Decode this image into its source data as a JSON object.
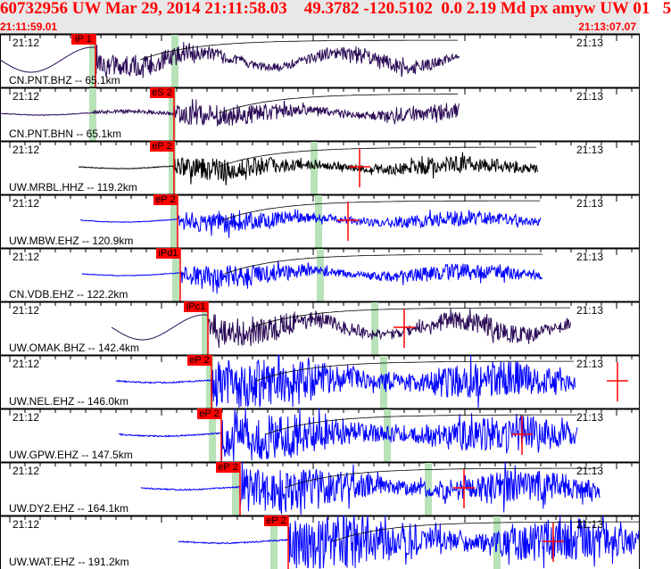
{
  "header": {
    "title": "60732956 UW Mar 29, 2014 21:11:58.03    49.3782 -120.5102  0.0 2.19 Md px amyw UW 01   5",
    "start_time": "21:11:59.01",
    "end_time": "21:13:07.07"
  },
  "colors": {
    "header_text": "#ff0000",
    "pick": "#ff0000",
    "band": "#b8e2b8",
    "bh_trace": "#2a0a55",
    "hh_trace": "#000000",
    "eh_trace": "#0000ff"
  },
  "time_labels": {
    "left": "21:12",
    "right": "21:13"
  },
  "panels": [
    {
      "station": "CN.PNT.BHZ -- 65.1km",
      "pick": "iP 1",
      "trace": "bh"
    },
    {
      "station": "CN.PNT.BHN -- 65.1km",
      "pick": "eS 2",
      "trace": "bh"
    },
    {
      "station": "UW.MRBL.HHZ -- 119.2km",
      "pick": "eP 2",
      "trace": "hh"
    },
    {
      "station": "UW.MBW.EHZ -- 120.9km",
      "pick": "eP 2",
      "trace": "eh"
    },
    {
      "station": "CN.VDB.EHZ -- 122.2km",
      "pick": "iPd1",
      "trace": "eh"
    },
    {
      "station": "UW.OMAK.BHZ -- 142.4km",
      "pick": "iPc1",
      "trace": "bh"
    },
    {
      "station": "UW.NEL.EHZ -- 146.0km",
      "pick": "eP 2",
      "trace": "eh"
    },
    {
      "station": "UW.GPW.EHZ -- 147.5km",
      "pick": "eP 2",
      "trace": "eh"
    },
    {
      "station": "UW.DY2.EHZ -- 164.1km",
      "pick": "eP 2",
      "trace": "eh"
    },
    {
      "station": "UW.WAT.EHZ -- 191.2km",
      "pick": "eP 2",
      "trace": "eh"
    }
  ]
}
